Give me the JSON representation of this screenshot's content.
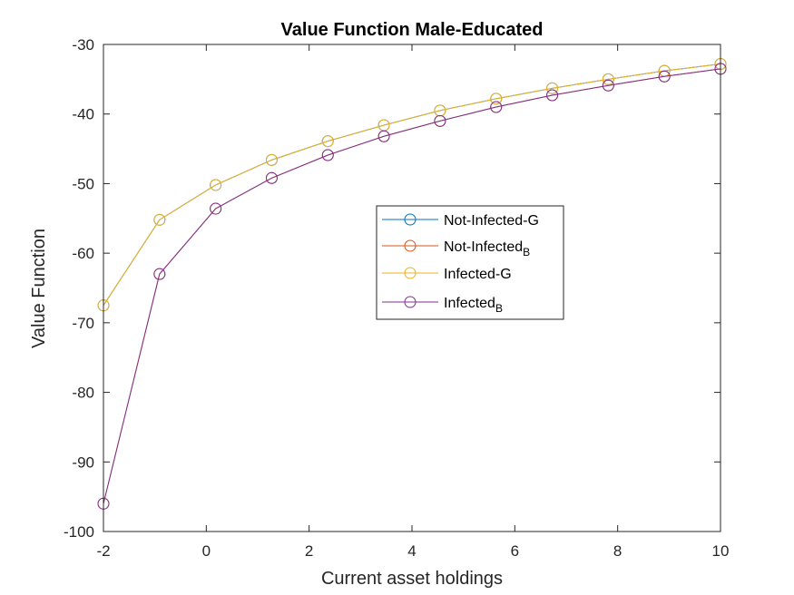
{
  "chart_data": {
    "type": "line",
    "title": "Value Function Male-Educated",
    "xlabel": "Current asset holdings",
    "ylabel": "Value Function",
    "xlim": [
      -2,
      10
    ],
    "ylim": [
      -100,
      -30
    ],
    "xticks": [
      -2,
      0,
      2,
      4,
      6,
      8,
      10
    ],
    "yticks": [
      -100,
      -90,
      -80,
      -70,
      -60,
      -50,
      -40,
      -30
    ],
    "grid": false,
    "legend_position": "center",
    "x": [
      -2,
      -0.9091,
      0.1818,
      1.2727,
      2.3636,
      3.4545,
      4.5455,
      5.6364,
      6.7273,
      7.8182,
      8.9091,
      10
    ],
    "series": [
      {
        "name": "Not-Infected-G",
        "color": "#0072BD",
        "values": [
          -67.5,
          -55.2,
          -50.2,
          -46.6,
          -43.9,
          -41.6,
          -39.5,
          -37.8,
          -36.3,
          -35.0,
          -33.8,
          -32.8
        ]
      },
      {
        "name": "Not-Infected",
        "name_subscript": "B",
        "color": "#D95319",
        "values": [
          -96.0,
          -63.0,
          -53.6,
          -49.2,
          -45.9,
          -43.2,
          -41.0,
          -39.0,
          -37.3,
          -35.9,
          -34.6,
          -33.5
        ]
      },
      {
        "name": "Infected-G",
        "color": "#EDB120",
        "values": [
          -67.5,
          -55.2,
          -50.2,
          -46.6,
          -43.9,
          -41.6,
          -39.5,
          -37.8,
          -36.3,
          -35.0,
          -33.8,
          -32.8
        ]
      },
      {
        "name": "Infected",
        "name_subscript": "B",
        "color": "#7E2F8E",
        "values": [
          -96.0,
          -63.0,
          -53.6,
          -49.2,
          -45.9,
          -43.2,
          -41.0,
          -39.0,
          -37.3,
          -35.9,
          -34.6,
          -33.5
        ]
      }
    ]
  }
}
